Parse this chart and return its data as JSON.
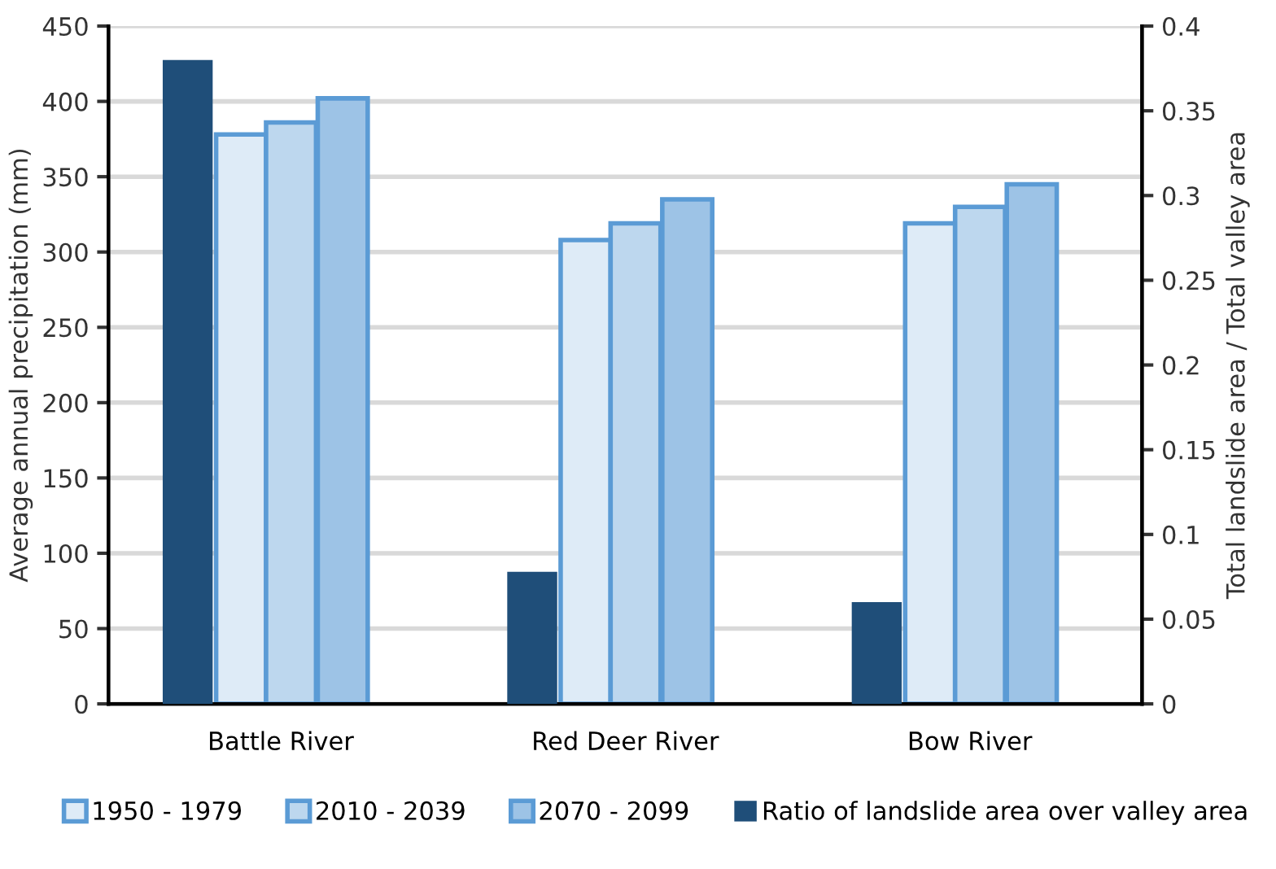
{
  "chart_data": {
    "type": "bar",
    "ylabel": "Average annual precipitation (mm)",
    "y2label": "Total landslide area / Total valley area",
    "categories": [
      "Battle River",
      "Red Deer River",
      "Bow River"
    ],
    "series": [
      {
        "name": "Ratio of landslide area over valley area",
        "color": "#1f4e79",
        "axis": "y2",
        "values": [
          0.38,
          0.078,
          0.06
        ]
      },
      {
        "name": "1950 - 1979",
        "color": "#deebf7",
        "values": [
          378,
          308,
          319
        ]
      },
      {
        "name": "2010 - 2039",
        "color": "#bdd7ee",
        "values": [
          386,
          319,
          330
        ]
      },
      {
        "name": "2070 - 2099",
        "color": "#9dc3e6",
        "values": [
          402,
          335,
          345
        ]
      }
    ],
    "ylim": [
      0,
      450
    ],
    "yticks": [
      0,
      50,
      100,
      150,
      200,
      250,
      300,
      350,
      400,
      450
    ],
    "y2lim": [
      0,
      0.4
    ],
    "y2ticks": [
      0,
      0.05,
      0.1,
      0.15,
      0.2,
      0.25,
      0.3,
      0.35,
      0.4
    ],
    "grid": "y",
    "legend": "bottom"
  }
}
